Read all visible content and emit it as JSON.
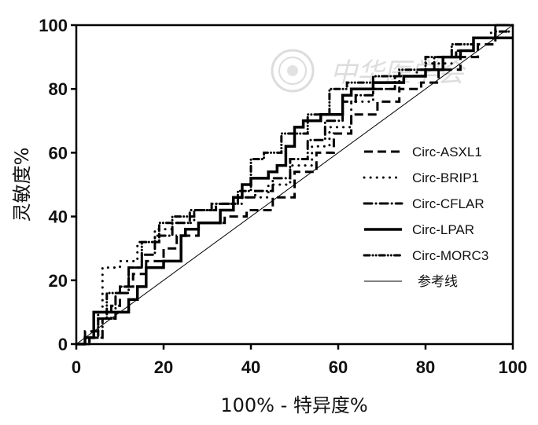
{
  "chart_data": {
    "type": "line",
    "title": "",
    "xlabel": "100% - 特异度%",
    "ylabel": "灵敏度%",
    "xlim": [
      0,
      100
    ],
    "ylim": [
      0,
      100
    ],
    "x_ticks": [
      0,
      20,
      40,
      60,
      80,
      100
    ],
    "y_ticks": [
      0,
      20,
      40,
      60,
      80,
      100
    ],
    "grid": false,
    "legend_position": "right-center",
    "watermark": "中华医学会",
    "series": [
      {
        "name": "Circ-ASXL1",
        "style": "dashed",
        "x": [
          0,
          2,
          2,
          5,
          5,
          8,
          8,
          10,
          10,
          13,
          13,
          16,
          16,
          20,
          20,
          23,
          23,
          28,
          28,
          34,
          34,
          39,
          39,
          45,
          45,
          50,
          50,
          55,
          55,
          59,
          59,
          63,
          63,
          69,
          69,
          74,
          74,
          79,
          79,
          83,
          83,
          88,
          88,
          92,
          92,
          96,
          96,
          100
        ],
        "y": [
          0,
          0,
          4,
          4,
          8,
          8,
          12,
          12,
          18,
          18,
          22,
          22,
          26,
          26,
          30,
          30,
          34,
          34,
          38,
          38,
          40,
          40,
          42,
          42,
          46,
          46,
          54,
          54,
          60,
          60,
          66,
          66,
          72,
          72,
          76,
          76,
          80,
          80,
          82,
          82,
          86,
          86,
          90,
          90,
          94,
          94,
          98,
          98
        ]
      },
      {
        "name": "Circ-BRIP1",
        "style": "dotted",
        "x": [
          0,
          3,
          3,
          5,
          5,
          6,
          6,
          10,
          10,
          14,
          14,
          18,
          18,
          22,
          22,
          27,
          27,
          32,
          32,
          38,
          38,
          44,
          44,
          49,
          49,
          54,
          54,
          58,
          58,
          63,
          63,
          68,
          68,
          74,
          74,
          80,
          80,
          86,
          86,
          91,
          91,
          95,
          95,
          100
        ],
        "y": [
          0,
          0,
          2,
          2,
          10,
          10,
          24,
          24,
          26,
          26,
          32,
          32,
          36,
          36,
          38,
          38,
          42,
          42,
          44,
          44,
          46,
          46,
          50,
          50,
          56,
          56,
          62,
          62,
          68,
          68,
          76,
          76,
          80,
          80,
          84,
          84,
          88,
          88,
          92,
          92,
          96,
          96,
          98,
          98
        ]
      },
      {
        "name": "Circ-CFLAR",
        "style": "dash-dot",
        "x": [
          0,
          3,
          3,
          6,
          6,
          9,
          9,
          12,
          12,
          15,
          15,
          18,
          18,
          22,
          22,
          26,
          26,
          31,
          31,
          36,
          36,
          41,
          41,
          45,
          45,
          49,
          49,
          53,
          53,
          57,
          57,
          61,
          61,
          64,
          64,
          68,
          68,
          73,
          73,
          78,
          78,
          82,
          82,
          87,
          87,
          91,
          91,
          96,
          96,
          100
        ],
        "y": [
          0,
          0,
          2,
          2,
          8,
          8,
          16,
          16,
          24,
          24,
          28,
          28,
          34,
          34,
          38,
          38,
          42,
          42,
          44,
          44,
          46,
          46,
          48,
          48,
          52,
          52,
          58,
          58,
          64,
          64,
          70,
          70,
          76,
          76,
          78,
          78,
          80,
          80,
          84,
          84,
          86,
          86,
          90,
          90,
          92,
          92,
          96,
          96,
          100,
          100
        ]
      },
      {
        "name": "Circ-LPAR",
        "style": "solid-thick",
        "x": [
          0,
          2,
          2,
          4,
          4,
          7,
          7,
          12,
          12,
          14,
          14,
          16,
          16,
          20,
          20,
          24,
          24,
          25,
          25,
          28,
          28,
          33,
          33,
          36,
          36,
          38,
          38,
          40,
          40,
          44,
          44,
          46,
          46,
          48,
          48,
          50,
          50,
          52,
          52,
          56,
          56,
          61,
          61,
          63,
          63,
          68,
          68,
          75,
          75,
          80,
          80,
          84,
          84,
          88,
          88,
          91,
          91,
          96,
          96,
          100
        ],
        "y": [
          0,
          0,
          2,
          2,
          10,
          10,
          10,
          10,
          14,
          14,
          18,
          18,
          24,
          24,
          26,
          26,
          34,
          34,
          36,
          36,
          38,
          38,
          42,
          42,
          46,
          46,
          50,
          50,
          52,
          52,
          54,
          54,
          56,
          56,
          62,
          62,
          68,
          68,
          70,
          70,
          72,
          72,
          78,
          78,
          80,
          80,
          82,
          82,
          84,
          84,
          86,
          86,
          90,
          90,
          92,
          92,
          96,
          96,
          96,
          96
        ]
      },
      {
        "name": "Circ-MORC3",
        "style": "dash-dot-dot",
        "x": [
          0,
          3,
          3,
          5,
          5,
          7,
          7,
          10,
          10,
          12,
          12,
          15,
          15,
          19,
          19,
          22,
          22,
          27,
          27,
          32,
          32,
          37,
          37,
          40,
          40,
          43,
          43,
          47,
          47,
          53,
          53,
          58,
          58,
          62,
          62,
          68,
          68,
          74,
          74,
          80,
          80,
          86,
          86,
          91,
          91,
          96,
          96,
          100
        ],
        "y": [
          0,
          0,
          2,
          2,
          8,
          8,
          16,
          16,
          18,
          18,
          24,
          24,
          32,
          32,
          38,
          38,
          40,
          40,
          42,
          42,
          44,
          44,
          48,
          48,
          58,
          58,
          60,
          60,
          66,
          66,
          72,
          72,
          80,
          80,
          82,
          82,
          84,
          84,
          86,
          86,
          90,
          90,
          94,
          94,
          96,
          96,
          100,
          100
        ]
      },
      {
        "name": "参考线",
        "style": "thin",
        "x": [
          0,
          100
        ],
        "y": [
          0,
          100
        ]
      }
    ]
  }
}
